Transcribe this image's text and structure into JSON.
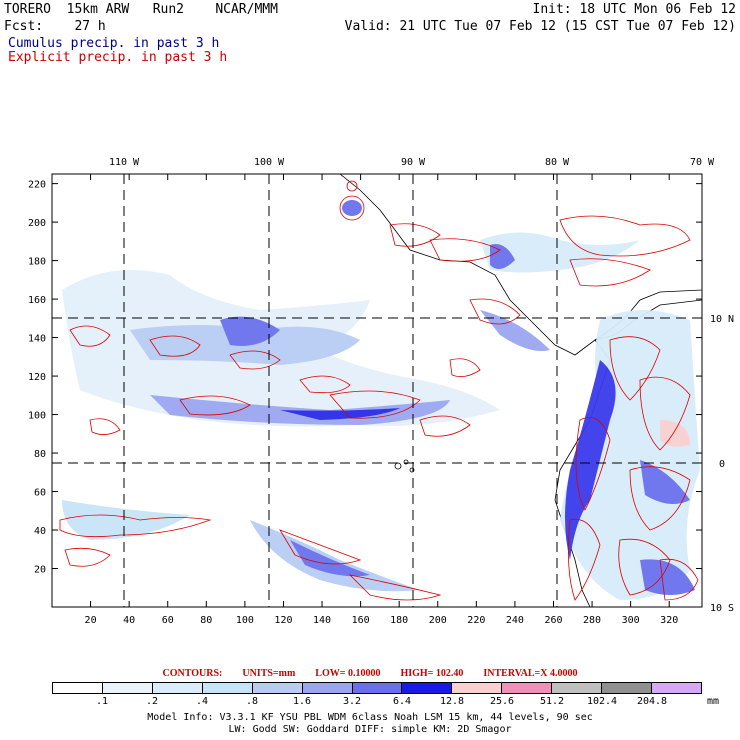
{
  "header": {
    "line1_left": "TORERO  15km ARW   Run2    NCAR/MMM",
    "line1_right": "Init: 18 UTC Mon 06 Feb 12",
    "line2_left": "Fcst:    27 h",
    "line2_right": "Valid: 21 UTC Tue 07 Feb 12 (15 CST Tue 07 Feb 12)",
    "cumulus": "Cumulus precip. in past 3 h",
    "explicit": "Explicit precip. in past 3 h",
    "cumulus_color": "#000080",
    "explicit_color": "#cc0000"
  },
  "map": {
    "lon_labels": [
      "110 W",
      "100 W",
      "90 W",
      "80 W",
      "70 W"
    ],
    "lat_labels": [
      "10 N",
      "0",
      "10 S"
    ],
    "y_ticks": [
      "220",
      "200",
      "180",
      "160",
      "140",
      "120",
      "100",
      "80",
      "60",
      "40",
      "20"
    ],
    "x_ticks": [
      "20",
      "40",
      "60",
      "80",
      "100",
      "120",
      "140",
      "160",
      "180",
      "200",
      "220",
      "240",
      "260",
      "280",
      "300",
      "320"
    ]
  },
  "contours": {
    "label": "CONTOURS:",
    "units": "UNITS=mm",
    "low": "LOW= 0.10000",
    "high": "HIGH=  102.40",
    "interval": "INTERVAL=X  4.0000"
  },
  "colorbar": {
    "labels": [
      ".1",
      ".2",
      ".4",
      ".8",
      "1.6",
      "3.2",
      "6.4",
      "12.8",
      "25.6",
      "51.2",
      "102.4",
      "204.8"
    ],
    "unit": "mm",
    "colors": [
      "#ffffff",
      "#e8f4fa",
      "#d8ecfa",
      "#c8e4f8",
      "#b8ccf4",
      "#9aa6f0",
      "#6a70ec",
      "#1a1ae8",
      "#f8d0d0",
      "#f090b8",
      "#c0c0c0",
      "#909090",
      "#d8a8f8"
    ]
  },
  "footer": {
    "line1": "Model Info: V3.3.1    KF      YSU PBL   WDM 6class  Noah LSM  15 km,    44 levels,    90 sec",
    "line2": "LW: Godd SW: Goddard DIFF: simple KM: 2D Smagor"
  }
}
